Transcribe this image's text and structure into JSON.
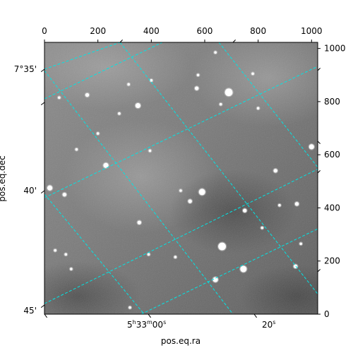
{
  "chart_data": {
    "type": "scatter",
    "title": "",
    "xlabel": "pos.eq.ra",
    "ylabel": "pos.eq.dec",
    "pixel_axes": {
      "x_range": [
        0,
        1023
      ],
      "y_range": [
        0,
        1023
      ],
      "x_ticks": [
        "0",
        "200",
        "400",
        "600",
        "800",
        "1000"
      ],
      "y_ticks": [
        "0",
        "200",
        "400",
        "600",
        "800",
        "1000"
      ]
    },
    "world_axes": {
      "ra_labels": [
        {
          "text": "5h33m00s",
          "main": "5",
          "sup1": "h",
          "mid": "33",
          "sup2": "m",
          "end": "00",
          "sup3": "s"
        },
        {
          "text": "20s",
          "main": "20",
          "sup1": "s"
        }
      ],
      "dec_labels": [
        "7°35'",
        "40'",
        "45'"
      ]
    },
    "image": {
      "description": "grayscale astronomical image with coordinate grid",
      "colormap": "gray"
    },
    "grid": true,
    "grid_color": "#00e5e5",
    "stars": [
      {
        "x": 690,
        "y": 835,
        "r": 6
      },
      {
        "x": 590,
        "y": 460,
        "r": 5
      },
      {
        "x": 665,
        "y": 255,
        "r": 6
      },
      {
        "x": 745,
        "y": 170,
        "r": 5
      },
      {
        "x": 640,
        "y": 130,
        "r": 4
      },
      {
        "x": 230,
        "y": 560,
        "r": 4
      },
      {
        "x": 350,
        "y": 785,
        "r": 4
      },
      {
        "x": 570,
        "y": 850,
        "r": 3
      },
      {
        "x": 865,
        "y": 540,
        "r": 3
      },
      {
        "x": 1000,
        "y": 630,
        "r": 4
      },
      {
        "x": 545,
        "y": 425,
        "r": 3
      },
      {
        "x": 750,
        "y": 390,
        "r": 3
      },
      {
        "x": 355,
        "y": 345,
        "r": 3
      },
      {
        "x": 20,
        "y": 475,
        "r": 4
      },
      {
        "x": 75,
        "y": 450,
        "r": 3
      },
      {
        "x": 160,
        "y": 825,
        "r": 3
      },
      {
        "x": 400,
        "y": 880,
        "r": 2
      },
      {
        "x": 575,
        "y": 900,
        "r": 2
      },
      {
        "x": 640,
        "y": 985,
        "r": 2
      },
      {
        "x": 780,
        "y": 905,
        "r": 2
      },
      {
        "x": 40,
        "y": 240,
        "r": 2
      },
      {
        "x": 80,
        "y": 225,
        "r": 2
      },
      {
        "x": 100,
        "y": 170,
        "r": 2
      },
      {
        "x": 390,
        "y": 225,
        "r": 2
      },
      {
        "x": 490,
        "y": 215,
        "r": 2
      },
      {
        "x": 940,
        "y": 180,
        "r": 3
      },
      {
        "x": 880,
        "y": 410,
        "r": 2
      },
      {
        "x": 945,
        "y": 415,
        "r": 3
      },
      {
        "x": 815,
        "y": 325,
        "r": 2
      },
      {
        "x": 280,
        "y": 755,
        "r": 2
      },
      {
        "x": 200,
        "y": 680,
        "r": 2
      },
      {
        "x": 395,
        "y": 615,
        "r": 2
      },
      {
        "x": 660,
        "y": 790,
        "r": 2
      },
      {
        "x": 800,
        "y": 775,
        "r": 2
      },
      {
        "x": 510,
        "y": 465,
        "r": 2
      },
      {
        "x": 320,
        "y": 25,
        "r": 2
      },
      {
        "x": 315,
        "y": 865,
        "r": 2
      },
      {
        "x": 55,
        "y": 815,
        "r": 2
      },
      {
        "x": 120,
        "y": 620,
        "r": 2
      },
      {
        "x": 960,
        "y": 265,
        "r": 2
      }
    ]
  }
}
